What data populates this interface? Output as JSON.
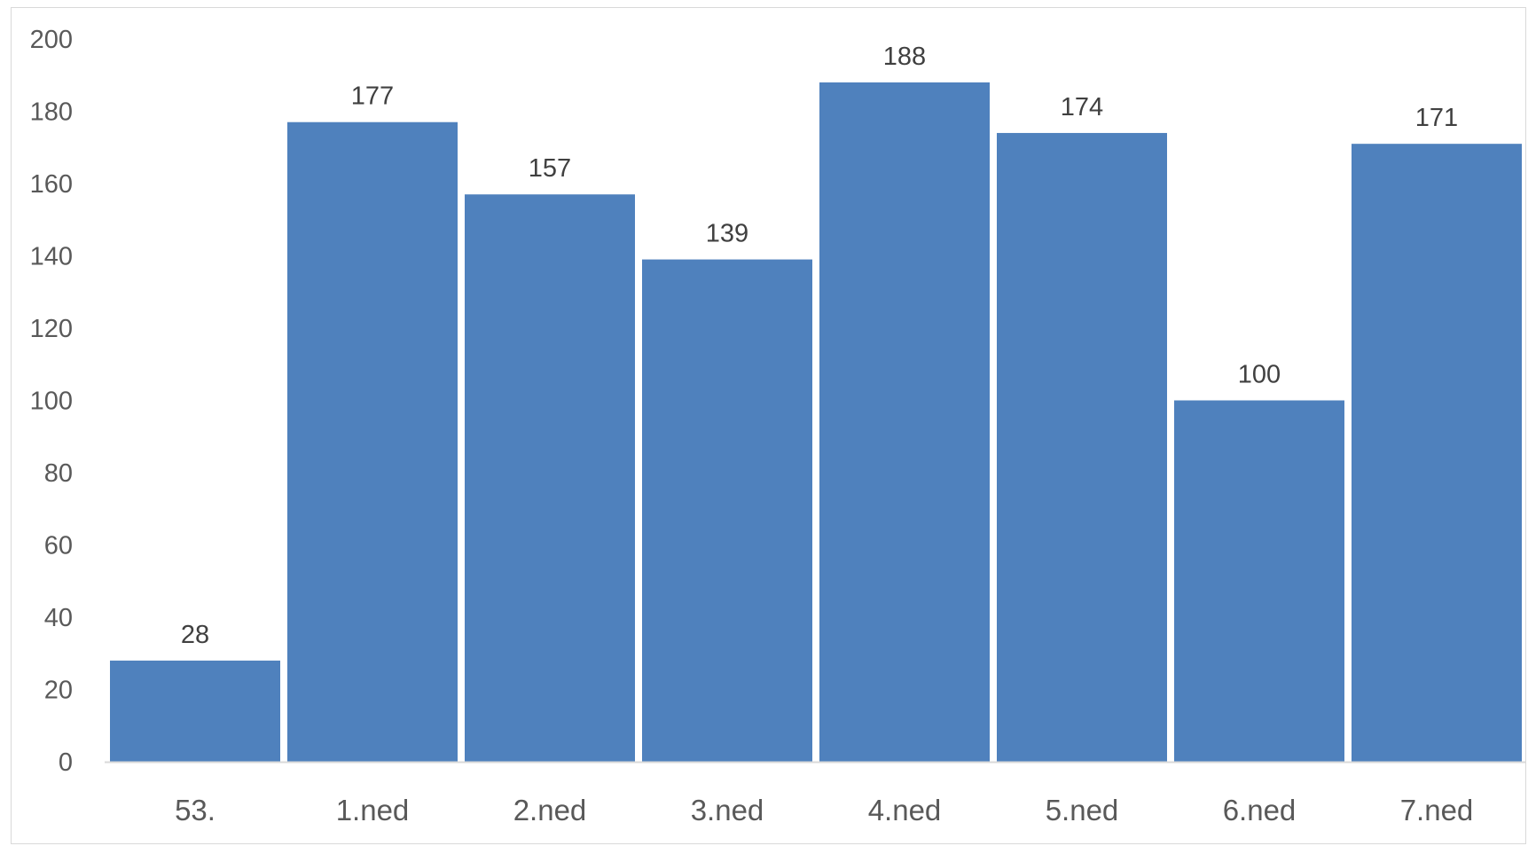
{
  "chart_data": {
    "type": "bar",
    "title": "",
    "xlabel": "",
    "ylabel": "",
    "categories": [
      "53.",
      "1.ned",
      "2.ned",
      "3.ned",
      "4.ned",
      "5.ned",
      "6.ned",
      "7.ned"
    ],
    "values": [
      28,
      177,
      157,
      139,
      188,
      174,
      100,
      171
    ],
    "ylim": [
      0,
      200
    ],
    "yticks": [
      0,
      20,
      40,
      60,
      80,
      100,
      120,
      140,
      160,
      180,
      200
    ],
    "grid": false,
    "legend": "none",
    "data_labels": true,
    "bar_color": "#4f81bd"
  }
}
